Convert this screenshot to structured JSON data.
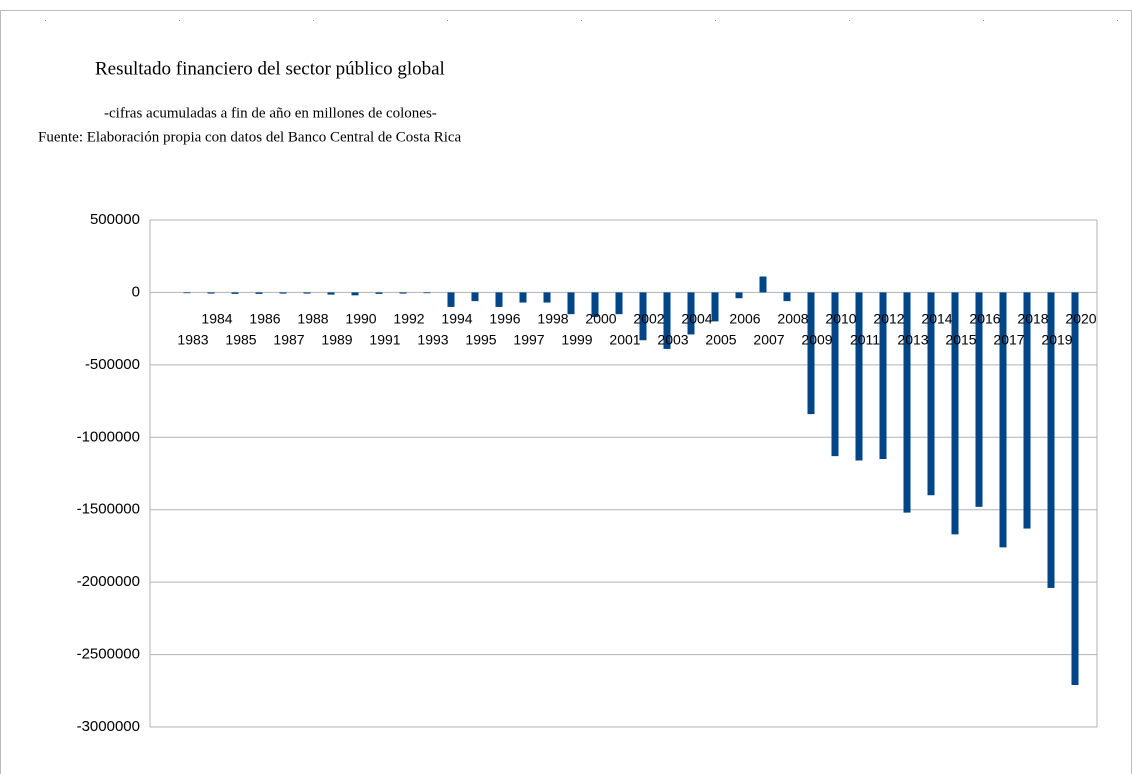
{
  "chart_data": {
    "type": "bar",
    "title": "Resultado financiero del sector público global",
    "subtitle": "-cifras acumuladas a fin de año en millones de colones-",
    "note": "Fuente: Elaboración propia con datos del Banco Central de Costa Rica",
    "categories": [
      "1983",
      "1984",
      "1985",
      "1986",
      "1987",
      "1988",
      "1989",
      "1990",
      "1991",
      "1992",
      "1993",
      "1994",
      "1995",
      "1996",
      "1997",
      "1998",
      "1999",
      "2000",
      "2001",
      "2002",
      "2003",
      "2004",
      "2005",
      "2006",
      "2007",
      "2008",
      "2009",
      "2010",
      "2011",
      "2012",
      "2013",
      "2014",
      "2015",
      "2016",
      "2017",
      "2018",
      "2019",
      "2020"
    ],
    "values": [
      -5000,
      -8000,
      -10000,
      -10000,
      -8000,
      -8000,
      -15000,
      -20000,
      -10000,
      -8000,
      -5000,
      -100000,
      -60000,
      -100000,
      -70000,
      -70000,
      -150000,
      -170000,
      -150000,
      -330000,
      -390000,
      -290000,
      -200000,
      -40000,
      110000,
      -60000,
      -840000,
      -1130000,
      -1160000,
      -1150000,
      -1520000,
      -1400000,
      -1670000,
      -1480000,
      -1760000,
      -1630000,
      -2040000,
      -2710000
    ],
    "color": "#004586",
    "ylim": [
      -3000000,
      500000
    ],
    "yticks": [
      500000,
      0,
      -500000,
      -1000000,
      -1500000,
      -2000000,
      -2500000,
      -3000000
    ],
    "grid": true
  }
}
